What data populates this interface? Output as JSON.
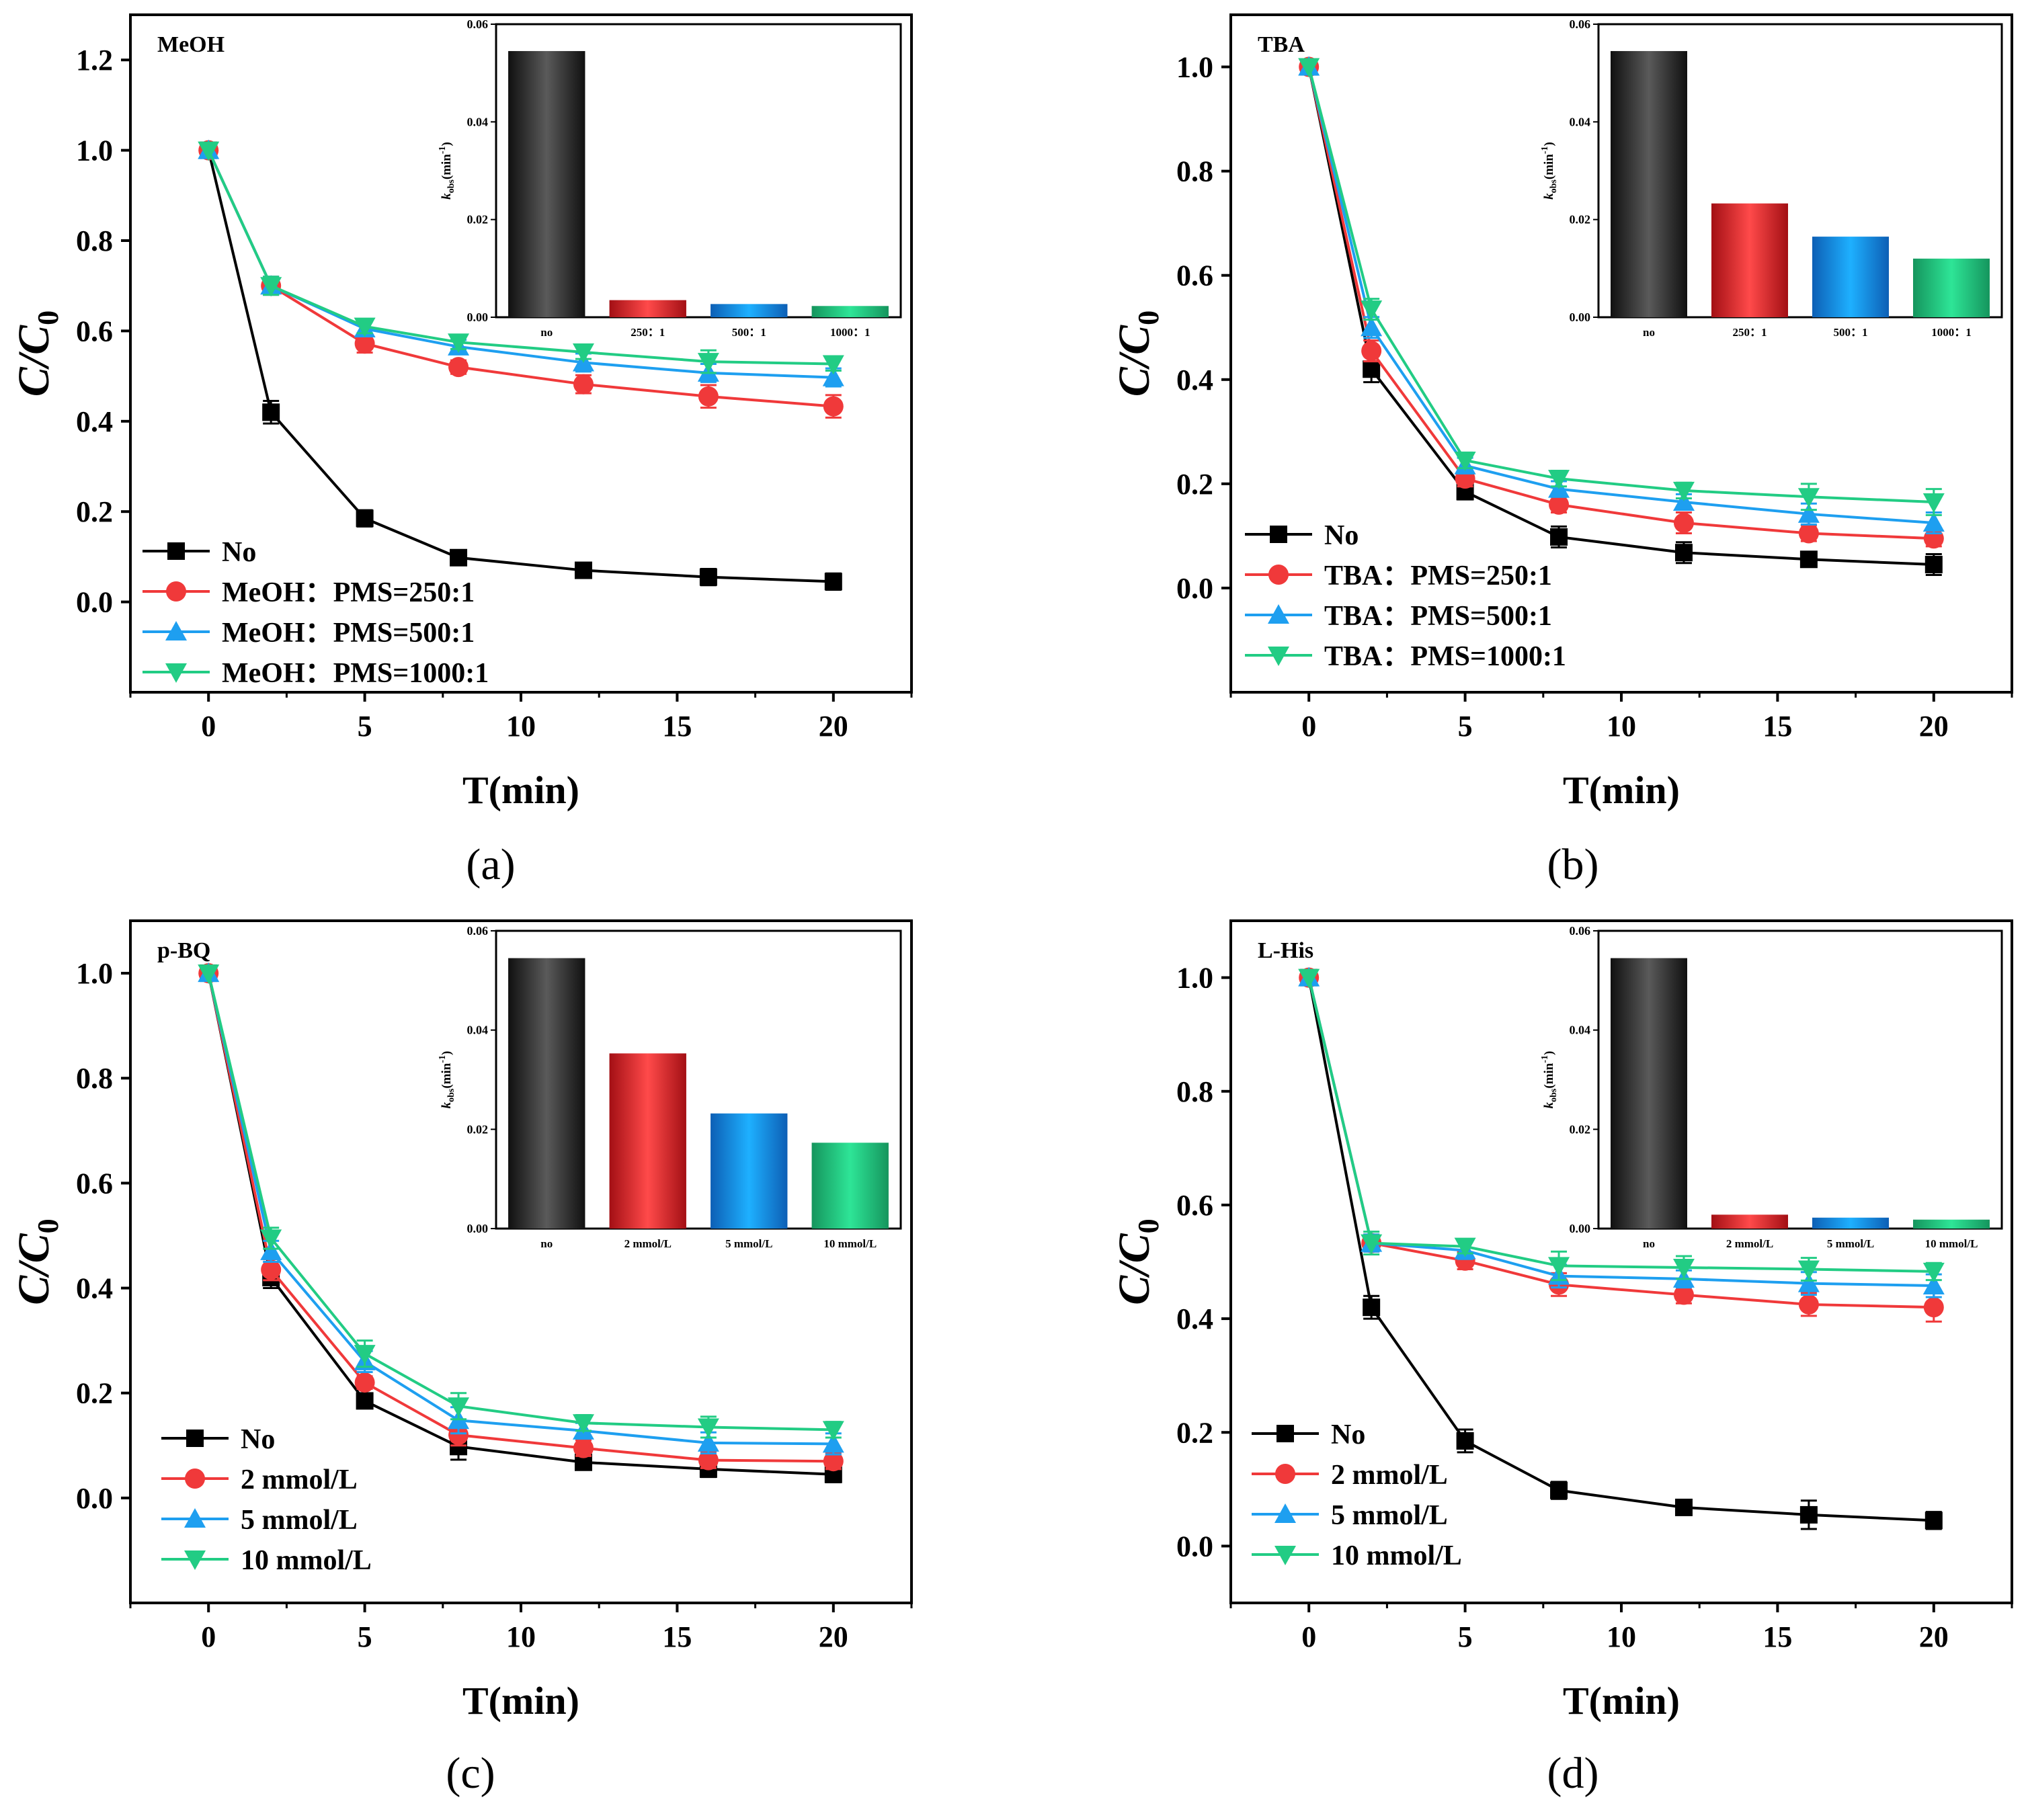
{
  "figure": {
    "colors": {
      "No": "#000000",
      "s1": "#f0393a",
      "s2": "#1e9ff0",
      "s3": "#22cc84"
    },
    "bar_gradients": {
      "no": [
        "#101010",
        "#5a5a5a",
        "#101010"
      ],
      "s1": [
        "#a30f14",
        "#ff4a4a",
        "#a30f14"
      ],
      "s2": [
        "#0d5fb5",
        "#1eb0ff",
        "#0d5fb5"
      ],
      "s3": [
        "#15955d",
        "#2ee597",
        "#15955d"
      ]
    },
    "markers": {
      "No": "square",
      "s1": "circle",
      "s2": "triangle-up",
      "s3": "triangle-down"
    }
  },
  "chart_data": [
    {
      "id": "a",
      "type": "line",
      "caption": "(a)",
      "title": "MeOH",
      "xlabel": "T(min)",
      "ylabel_main": "C/C",
      "ylabel_sub": "0",
      "xlim": [
        -2.5,
        22.5
      ],
      "ylim": [
        -0.2,
        1.3
      ],
      "xticks": [
        "0",
        "5",
        "10",
        "15",
        "20"
      ],
      "xtick_values": [
        0,
        5,
        10,
        15,
        20
      ],
      "yticks": [
        "0.0",
        "0.2",
        "0.4",
        "0.6",
        "0.8",
        "1.0",
        "1.2"
      ],
      "ytick_values": [
        0.0,
        0.2,
        0.4,
        0.6,
        0.8,
        1.0,
        1.2
      ],
      "legend_position": "bottom-left",
      "x": [
        0,
        2,
        5,
        8,
        12,
        16,
        20
      ],
      "series": [
        {
          "key": "No",
          "name": "No",
          "values": [
            1.0,
            0.42,
            0.185,
            0.098,
            0.07,
            0.055,
            0.045
          ],
          "errors": [
            0,
            0.025,
            0.018,
            0.012,
            0.01,
            0.018,
            0.018
          ]
        },
        {
          "key": "s1",
          "name": "MeOH：PMS=250:1",
          "values": [
            1.0,
            0.7,
            0.572,
            0.52,
            0.482,
            0.455,
            0.433
          ],
          "errors": [
            0,
            0.02,
            0.02,
            0.015,
            0.02,
            0.025,
            0.025
          ]
        },
        {
          "key": "s2",
          "name": "MeOH：PMS=500:1",
          "values": [
            1.0,
            0.7,
            0.605,
            0.565,
            0.53,
            0.507,
            0.497
          ],
          "errors": [
            0,
            0.02,
            0.015,
            0.015,
            0.02,
            0.02,
            0.02
          ]
        },
        {
          "key": "s3",
          "name": "MeOH：PMS=1000:1",
          "values": [
            1.0,
            0.7,
            0.61,
            0.575,
            0.553,
            0.532,
            0.527
          ],
          "errors": [
            0,
            0.02,
            0.015,
            0.015,
            0.015,
            0.025,
            0.015
          ]
        }
      ],
      "inset": {
        "ylabel_main": "k",
        "ylabel_sub": "obs",
        "ylabel_unit": "(min",
        "ylabel_exp": "-1",
        "ylabel_close": ")",
        "ylim": [
          0,
          0.06
        ],
        "yticks": [
          "0.00",
          "0.02",
          "0.04",
          "0.06"
        ],
        "ytick_values": [
          0,
          0.02,
          0.04,
          0.06
        ],
        "categories": [
          "no",
          "250：1",
          "500：1",
          "1000：1"
        ],
        "values": [
          0.0545,
          0.0035,
          0.0027,
          0.0023
        ]
      }
    },
    {
      "id": "b",
      "type": "line",
      "caption": "(b)",
      "title": "TBA",
      "xlabel": "T(min)",
      "ylabel_main": "C/C",
      "ylabel_sub": "0",
      "xlim": [
        -2.5,
        22.5
      ],
      "ylim": [
        -0.2,
        1.1
      ],
      "xticks": [
        "0",
        "5",
        "10",
        "15",
        "20"
      ],
      "xtick_values": [
        0,
        5,
        10,
        15,
        20
      ],
      "yticks": [
        "0.0",
        "0.2",
        "0.4",
        "0.6",
        "0.8",
        "1.0"
      ],
      "ytick_values": [
        0.0,
        0.2,
        0.4,
        0.6,
        0.8,
        1.0
      ],
      "legend_position": "bottom-left",
      "x": [
        0,
        2,
        5,
        8,
        12,
        16,
        20
      ],
      "series": [
        {
          "key": "No",
          "name": "No",
          "values": [
            1.0,
            0.42,
            0.185,
            0.098,
            0.068,
            0.055,
            0.045
          ],
          "errors": [
            0,
            0.025,
            0.015,
            0.02,
            0.02,
            0.012,
            0.02
          ]
        },
        {
          "key": "s1",
          "name": "TBA：PMS=250:1",
          "values": [
            1.0,
            0.455,
            0.21,
            0.16,
            0.125,
            0.105,
            0.095
          ],
          "errors": [
            0,
            0.02,
            0.015,
            0.015,
            0.02,
            0.015,
            0.015
          ]
        },
        {
          "key": "s2",
          "name": "TBA：PMS=500:1",
          "values": [
            1.0,
            0.5,
            0.235,
            0.19,
            0.165,
            0.142,
            0.125
          ],
          "errors": [
            0,
            0.02,
            0.015,
            0.015,
            0.015,
            0.02,
            0.02
          ]
        },
        {
          "key": "s3",
          "name": "TBA：PMS=1000:1",
          "values": [
            1.0,
            0.535,
            0.245,
            0.21,
            0.187,
            0.175,
            0.165
          ],
          "errors": [
            0,
            0.02,
            0.015,
            0.015,
            0.015,
            0.025,
            0.025
          ]
        }
      ],
      "inset": {
        "ylabel_main": "k",
        "ylabel_sub": "obs",
        "ylabel_unit": "(min",
        "ylabel_exp": "-1",
        "ylabel_close": ")",
        "ylim": [
          0,
          0.06
        ],
        "yticks": [
          "0.00",
          "0.02",
          "0.04",
          "0.06"
        ],
        "ytick_values": [
          0,
          0.02,
          0.04,
          0.06
        ],
        "categories": [
          "no",
          "250：1",
          "500：1",
          "1000：1"
        ],
        "values": [
          0.0545,
          0.0233,
          0.0165,
          0.012
        ]
      }
    },
    {
      "id": "c",
      "type": "line",
      "caption": "(c)",
      "title": "p-BQ",
      "xlabel": "T(min)",
      "ylabel_main": "C/C",
      "ylabel_sub": "0",
      "xlim": [
        -2.5,
        22.5
      ],
      "ylim": [
        -0.2,
        1.1
      ],
      "xticks": [
        "0",
        "5",
        "10",
        "15",
        "20"
      ],
      "xtick_values": [
        0,
        5,
        10,
        15,
        20
      ],
      "yticks": [
        "0.0",
        "0.2",
        "0.4",
        "0.6",
        "0.8",
        "1.0"
      ],
      "ytick_values": [
        0.0,
        0.2,
        0.4,
        0.6,
        0.8,
        1.0
      ],
      "legend_position": "bottom-left",
      "x": [
        0,
        2,
        5,
        8,
        12,
        16,
        20
      ],
      "series": [
        {
          "key": "No",
          "name": "No",
          "values": [
            1.0,
            0.42,
            0.185,
            0.098,
            0.068,
            0.055,
            0.045
          ],
          "errors": [
            0,
            0.02,
            0.012,
            0.025,
            0.012,
            0.015,
            0.015
          ]
        },
        {
          "key": "s1",
          "name": "2 mmol/L",
          "values": [
            1.0,
            0.435,
            0.22,
            0.12,
            0.095,
            0.072,
            0.07
          ],
          "errors": [
            0,
            0.02,
            0.012,
            0.02,
            0.015,
            0.015,
            0.015
          ]
        },
        {
          "key": "s2",
          "name": "5 mmol/L",
          "values": [
            1.0,
            0.47,
            0.26,
            0.148,
            0.128,
            0.105,
            0.103
          ],
          "errors": [
            0,
            0.02,
            0.02,
            0.025,
            0.015,
            0.02,
            0.02
          ]
        },
        {
          "key": "s3",
          "name": "10 mmol/L",
          "values": [
            1.0,
            0.495,
            0.275,
            0.175,
            0.143,
            0.135,
            0.13
          ],
          "errors": [
            0,
            0.02,
            0.025,
            0.025,
            0.015,
            0.02,
            0.015
          ]
        }
      ],
      "inset": {
        "ylabel_main": "k",
        "ylabel_sub": "obs",
        "ylabel_unit": "(min",
        "ylabel_exp": "-1",
        "ylabel_close": ")",
        "ylim": [
          0,
          0.06
        ],
        "yticks": [
          "0.00",
          "0.02",
          "0.04",
          "0.06"
        ],
        "ytick_values": [
          0,
          0.02,
          0.04,
          0.06
        ],
        "categories": [
          "no",
          "2 mmol/L",
          "5 mmol/L",
          "10 mmol/L"
        ],
        "values": [
          0.0545,
          0.0353,
          0.0232,
          0.0173
        ]
      }
    },
    {
      "id": "d",
      "type": "line",
      "caption": "(d)",
      "title": "L-His",
      "xlabel": "T(min)",
      "ylabel_main": "C/C",
      "ylabel_sub": "0",
      "xlim": [
        -2.5,
        22.5
      ],
      "ylim": [
        -0.1,
        1.1
      ],
      "xticks": [
        "0",
        "5",
        "10",
        "15",
        "20"
      ],
      "xtick_values": [
        0,
        5,
        10,
        15,
        20
      ],
      "yticks": [
        "0.0",
        "0.2",
        "0.4",
        "0.6",
        "0.8",
        "1.0"
      ],
      "ytick_values": [
        0.0,
        0.2,
        0.4,
        0.6,
        0.8,
        1.0
      ],
      "legend_position": "bottom-left",
      "x": [
        0,
        2,
        5,
        8,
        12,
        16,
        20
      ],
      "series": [
        {
          "key": "No",
          "name": "No",
          "values": [
            1.0,
            0.42,
            0.185,
            0.098,
            0.068,
            0.055,
            0.045
          ],
          "errors": [
            0,
            0.02,
            0.02,
            0.015,
            0.01,
            0.025,
            0.015
          ]
        },
        {
          "key": "s1",
          "name": "2 mmol/L",
          "values": [
            1.0,
            0.533,
            0.502,
            0.46,
            0.442,
            0.425,
            0.42
          ],
          "errors": [
            0,
            0.015,
            0.015,
            0.02,
            0.015,
            0.02,
            0.025
          ]
        },
        {
          "key": "s2",
          "name": "5 mmol/L",
          "values": [
            1.0,
            0.533,
            0.52,
            0.475,
            0.47,
            0.462,
            0.458
          ],
          "errors": [
            0,
            0.015,
            0.015,
            0.02,
            0.015,
            0.02,
            0.02
          ]
        },
        {
          "key": "s3",
          "name": "10 mmol/L",
          "values": [
            1.0,
            0.533,
            0.527,
            0.493,
            0.49,
            0.487,
            0.483
          ],
          "errors": [
            0,
            0.02,
            0.012,
            0.025,
            0.02,
            0.02,
            0.015
          ]
        }
      ],
      "inset": {
        "ylabel_main": "k",
        "ylabel_sub": "obs",
        "ylabel_unit": "(min",
        "ylabel_exp": "-1",
        "ylabel_close": ")",
        "ylim": [
          0,
          0.06
        ],
        "yticks": [
          "0.00",
          "0.02",
          "0.04",
          "0.06"
        ],
        "ytick_values": [
          0,
          0.02,
          0.04,
          0.06
        ],
        "categories": [
          "no",
          "2 mmol/L",
          "5 mmol/L",
          "10 mmol/L"
        ],
        "values": [
          0.0545,
          0.0028,
          0.0022,
          0.0018
        ]
      }
    }
  ]
}
